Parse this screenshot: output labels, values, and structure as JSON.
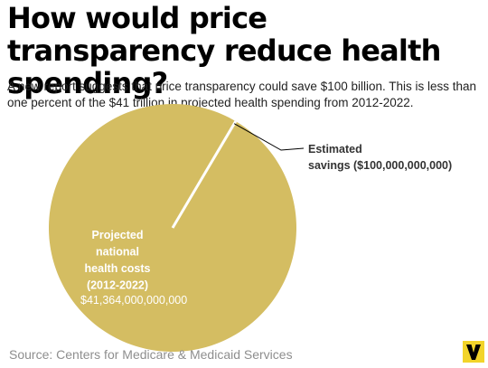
{
  "chart_data": {
    "type": "pie",
    "title": "How would price transparency reduce health spending?",
    "subtitle": "A new report suggests that price transparency could save $100 billion. This is less than one percent of the $41 trillion in projected health spending from 2012-2022.",
    "slices": [
      {
        "label_lines": [
          "Projected",
          "national",
          "health costs",
          "(2012-2022)"
        ],
        "value_label": "$41,364,000,000,000",
        "value": 41364000000000
      },
      {
        "label_lines": [
          "Estimated",
          "savings ($100,000,000,000)"
        ],
        "value": 100000000000
      }
    ],
    "colors": {
      "slice": "#d4bd62",
      "separator": "#ffffff",
      "leader_line": "#000000"
    },
    "source": "Source: Centers for Medicare & Medicaid Services"
  },
  "brand": {
    "logo_color": "#f2d42a",
    "logo_letter_color": "#000000"
  }
}
